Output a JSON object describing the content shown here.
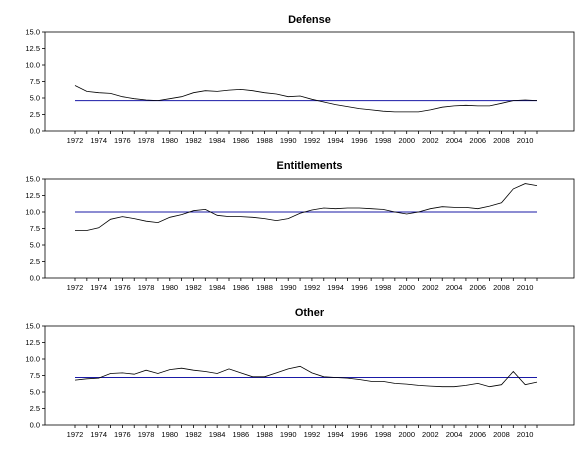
{
  "colors": {
    "series": "#000000",
    "reference": "#1a1aa6"
  },
  "chart_data": [
    {
      "type": "line",
      "title": "Defense",
      "ylim": [
        0,
        15
      ],
      "yticks": [
        "0.0",
        "2.5",
        "5.0",
        "7.5",
        "10.0",
        "12.5",
        "15.0"
      ],
      "xticks": [
        "1972",
        "1974",
        "1976",
        "1978",
        "1980",
        "1982",
        "1984",
        "1986",
        "1988",
        "1990",
        "1992",
        "1994",
        "1996",
        "1998",
        "2000",
        "2002",
        "2004",
        "2006",
        "2008",
        "2010"
      ],
      "x": [
        1972,
        1973,
        1974,
        1975,
        1976,
        1977,
        1978,
        1979,
        1980,
        1981,
        1982,
        1983,
        1984,
        1985,
        1986,
        1987,
        1988,
        1989,
        1990,
        1991,
        1992,
        1993,
        1994,
        1995,
        1996,
        1997,
        1998,
        1999,
        2000,
        2001,
        2002,
        2003,
        2004,
        2005,
        2006,
        2007,
        2008,
        2009,
        2010,
        2011
      ],
      "series": [
        {
          "values": [
            6.9,
            6.0,
            5.8,
            5.7,
            5.2,
            4.9,
            4.7,
            4.6,
            4.9,
            5.2,
            5.8,
            6.1,
            6.0,
            6.2,
            6.3,
            6.1,
            5.8,
            5.6,
            5.2,
            5.3,
            4.8,
            4.4,
            4.0,
            3.7,
            3.4,
            3.2,
            3.0,
            2.9,
            2.9,
            2.9,
            3.2,
            3.6,
            3.8,
            3.9,
            3.8,
            3.8,
            4.2,
            4.6,
            4.7,
            4.6
          ]
        }
      ],
      "reference": 4.6
    },
    {
      "type": "line",
      "title": "Entitlements",
      "ylim": [
        0,
        15
      ],
      "yticks": [
        "0.0",
        "2.5",
        "5.0",
        "7.5",
        "10.0",
        "12.5",
        "15.0"
      ],
      "xticks": [
        "1972",
        "1974",
        "1976",
        "1978",
        "1980",
        "1982",
        "1984",
        "1986",
        "1988",
        "1990",
        "1992",
        "1994",
        "1996",
        "1998",
        "2000",
        "2002",
        "2004",
        "2006",
        "2008",
        "2010"
      ],
      "x": [
        1972,
        1973,
        1974,
        1975,
        1976,
        1977,
        1978,
        1979,
        1980,
        1981,
        1982,
        1983,
        1984,
        1985,
        1986,
        1987,
        1988,
        1989,
        1990,
        1991,
        1992,
        1993,
        1994,
        1995,
        1996,
        1997,
        1998,
        1999,
        2000,
        2001,
        2002,
        2003,
        2004,
        2005,
        2006,
        2007,
        2008,
        2009,
        2010,
        2011
      ],
      "series": [
        {
          "values": [
            7.2,
            7.2,
            7.6,
            8.9,
            9.3,
            9.0,
            8.6,
            8.4,
            9.2,
            9.6,
            10.2,
            10.4,
            9.5,
            9.3,
            9.3,
            9.2,
            9.0,
            8.7,
            9.0,
            9.8,
            10.3,
            10.6,
            10.5,
            10.6,
            10.6,
            10.5,
            10.4,
            10.0,
            9.7,
            10.0,
            10.5,
            10.8,
            10.7,
            10.7,
            10.5,
            10.9,
            11.4,
            13.5,
            14.3,
            14.0
          ]
        }
      ],
      "reference": 10.0
    },
    {
      "type": "line",
      "title": "Other",
      "ylim": [
        0,
        15
      ],
      "yticks": [
        "0.0",
        "2.5",
        "5.0",
        "7.5",
        "10.0",
        "12.5",
        "15.0"
      ],
      "xticks": [
        "1972",
        "1974",
        "1976",
        "1978",
        "1980",
        "1982",
        "1984",
        "1986",
        "1988",
        "1990",
        "1992",
        "1994",
        "1996",
        "1998",
        "2000",
        "2002",
        "2004",
        "2006",
        "2008",
        "2010"
      ],
      "x": [
        1972,
        1973,
        1974,
        1975,
        1976,
        1977,
        1978,
        1979,
        1980,
        1981,
        1982,
        1983,
        1984,
        1985,
        1986,
        1987,
        1988,
        1989,
        1990,
        1991,
        1992,
        1993,
        1994,
        1995,
        1996,
        1997,
        1998,
        1999,
        2000,
        2001,
        2002,
        2003,
        2004,
        2005,
        2006,
        2007,
        2008,
        2009,
        2010,
        2011
      ],
      "series": [
        {
          "values": [
            6.8,
            7.0,
            7.1,
            7.8,
            7.9,
            7.7,
            8.3,
            7.8,
            8.4,
            8.6,
            8.3,
            8.1,
            7.8,
            8.5,
            7.9,
            7.3,
            7.3,
            7.9,
            8.5,
            8.9,
            7.9,
            7.3,
            7.2,
            7.1,
            6.9,
            6.6,
            6.6,
            6.3,
            6.2,
            6.0,
            5.9,
            5.8,
            5.8,
            6.0,
            6.3,
            5.8,
            6.1,
            8.1,
            6.1,
            6.5
          ]
        }
      ],
      "reference": 7.2
    }
  ]
}
